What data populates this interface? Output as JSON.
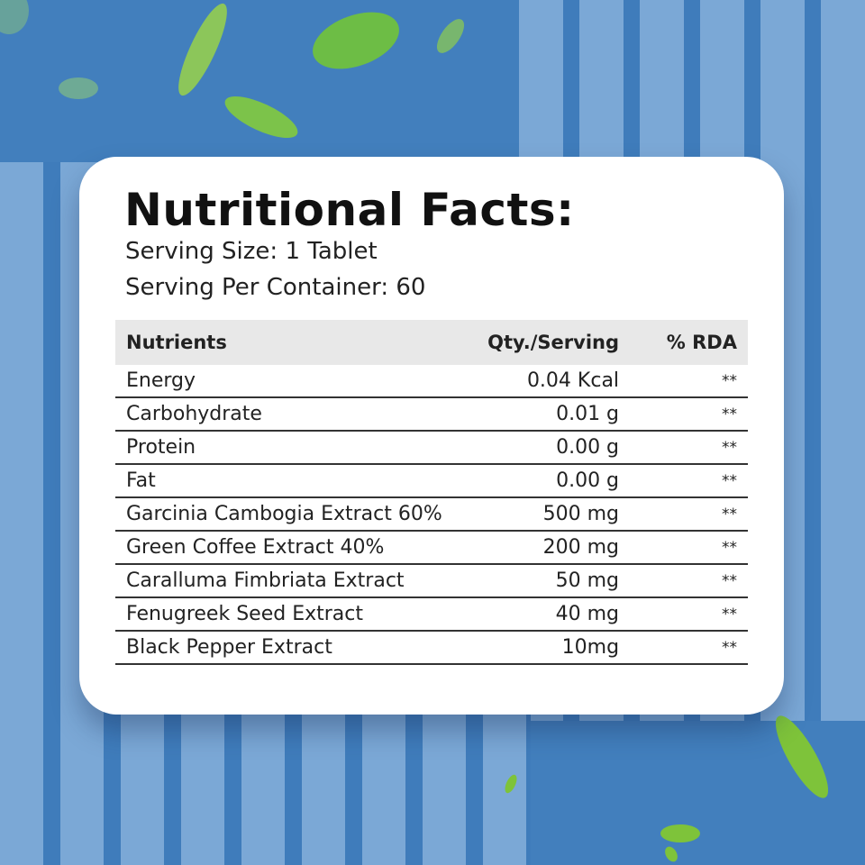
{
  "title": "Nutritional Facts:",
  "serving_size": "Serving Size: 1 Tablet",
  "serving_per_container": "Serving Per Container: 60",
  "table": {
    "headers": [
      "Nutrients",
      "Qty./Serving",
      "% RDA"
    ],
    "rows": [
      {
        "nutrient": "Energy",
        "qty": "0.04 Kcal",
        "rda": "**"
      },
      {
        "nutrient": "Carbohydrate",
        "qty": "0.01 g",
        "rda": "**"
      },
      {
        "nutrient": "Protein",
        "qty": "0.00 g",
        "rda": "**"
      },
      {
        "nutrient": "Fat",
        "qty": "0.00 g",
        "rda": "**"
      },
      {
        "nutrient": "Garcinia Cambogia Extract 60%",
        "qty": "500 mg",
        "rda": "**"
      },
      {
        "nutrient": "Green Coffee Extract 40%",
        "qty": "200 mg",
        "rda": "**"
      },
      {
        "nutrient": "Caralluma Fimbriata Extract",
        "qty": "50 mg",
        "rda": "**"
      },
      {
        "nutrient": "Fenugreek Seed Extract",
        "qty": "40 mg",
        "rda": "**"
      },
      {
        "nutrient": "Black Pepper Extract",
        "qty": "10mg",
        "rda": "**"
      }
    ]
  },
  "colors": {
    "background": "#427fbd",
    "stripe_light": "#7ba8d6",
    "leaf": "#7cc34a"
  }
}
